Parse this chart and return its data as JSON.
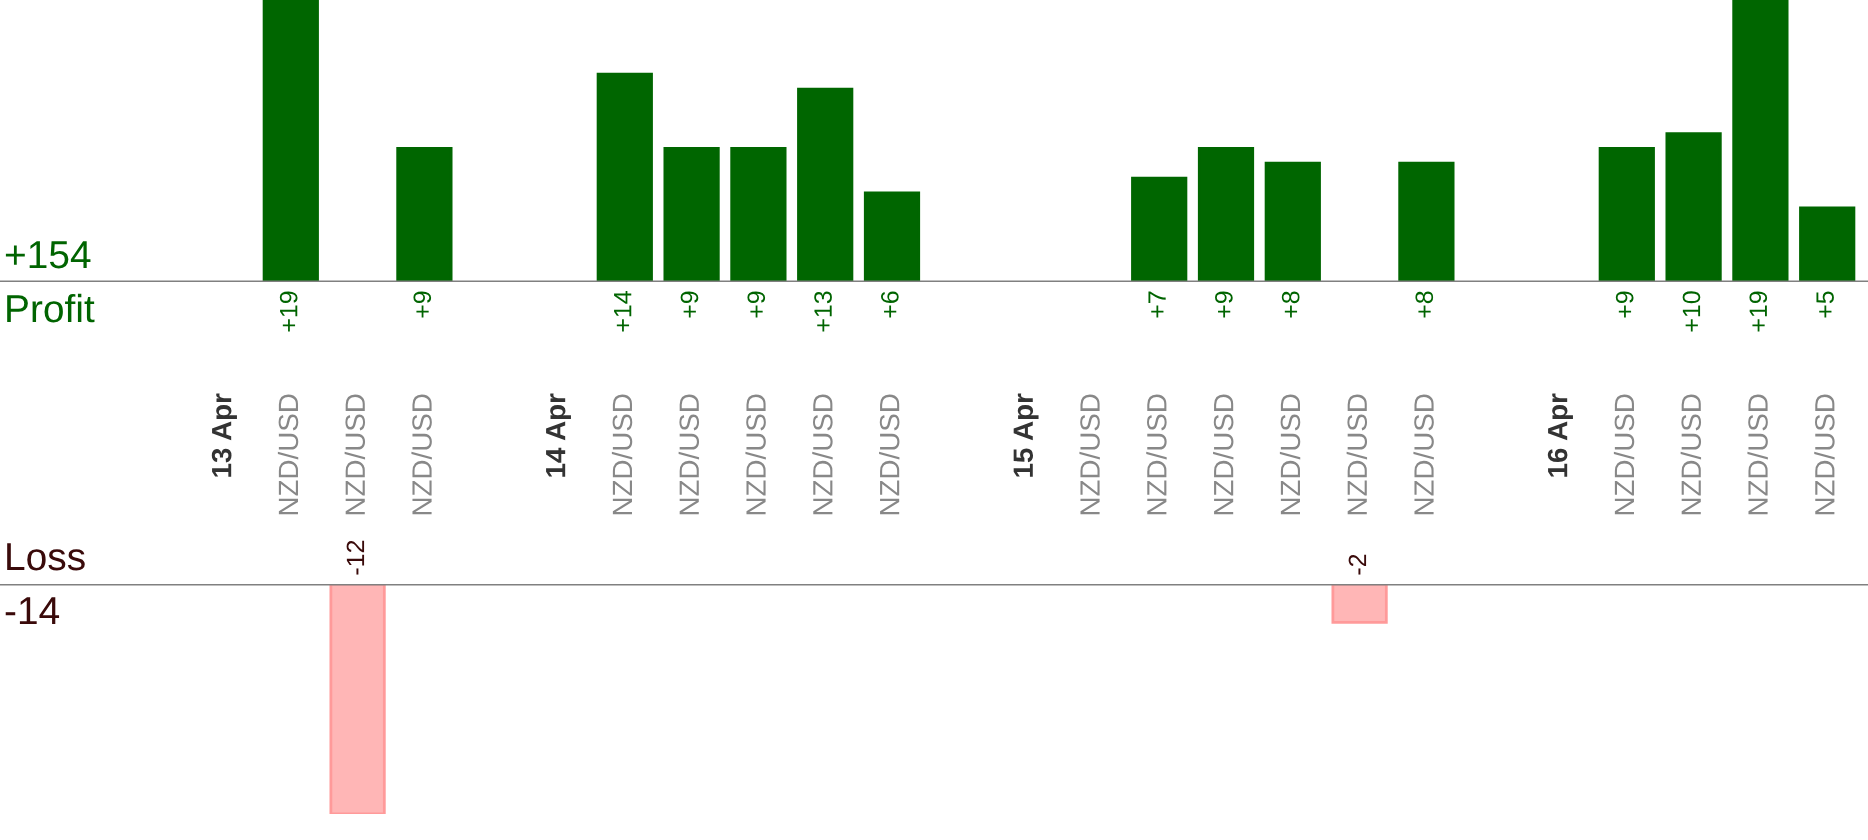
{
  "chart_data": [
    {
      "type": "bar",
      "categories": [
        "13 Apr",
        "NZD/USD",
        "NZD/USD",
        "NZD/USD",
        null,
        "14 Apr",
        "NZD/USD",
        "NZD/USD",
        "NZD/USD",
        "NZD/USD",
        "NZD/USD",
        null,
        "15 Apr",
        "NZD/USD",
        "NZD/USD",
        "NZD/USD",
        "NZD/USD",
        "NZD/USD",
        "NZD/USD",
        null,
        "16 Apr",
        "NZD/USD",
        "NZD/USD",
        "NZD/USD",
        "NZD/USD"
      ],
      "series": [
        {
          "name": "Profit",
          "color": "#006600",
          "values": [
            null,
            19,
            null,
            9,
            null,
            null,
            14,
            9,
            9,
            13,
            6,
            null,
            null,
            null,
            7,
            9,
            8,
            null,
            8,
            null,
            null,
            9,
            10,
            19,
            5
          ],
          "value_labels": [
            null,
            "+19",
            null,
            "+9",
            null,
            null,
            "+14",
            "+9",
            "+9",
            "+13",
            "+6",
            null,
            null,
            null,
            "+7",
            "+9",
            "+8",
            null,
            "+8",
            null,
            null,
            "+9",
            "+10",
            "+19",
            "+5"
          ]
        }
      ],
      "ylim": [
        0,
        19
      ],
      "tick_labels": "x",
      "legend": false,
      "annotations": [
        "+154"
      ]
    },
    {
      "type": "bar",
      "categories": [
        null,
        null,
        null,
        null,
        null,
        null,
        null,
        null,
        null,
        null,
        null,
        null,
        null,
        null,
        null,
        null,
        null,
        null,
        null,
        null,
        null,
        null,
        null,
        null,
        null
      ],
      "series": [
        {
          "name": "Loss",
          "color": "#ffb6b6",
          "values": [
            null,
            null,
            -12,
            null,
            null,
            null,
            null,
            null,
            null,
            null,
            null,
            null,
            null,
            null,
            null,
            null,
            null,
            -2,
            null,
            null,
            null,
            null,
            null,
            null,
            null
          ],
          "value_labels": [
            null,
            null,
            "-12",
            null,
            null,
            null,
            null,
            null,
            null,
            null,
            null,
            null,
            null,
            null,
            null,
            null,
            null,
            "-2",
            null,
            null,
            null,
            null,
            null,
            null,
            null
          ]
        }
      ],
      "ylim": [
        -12,
        0
      ],
      "tick_labels": false,
      "legend": false,
      "annotations": [
        "-14"
      ]
    }
  ]
}
